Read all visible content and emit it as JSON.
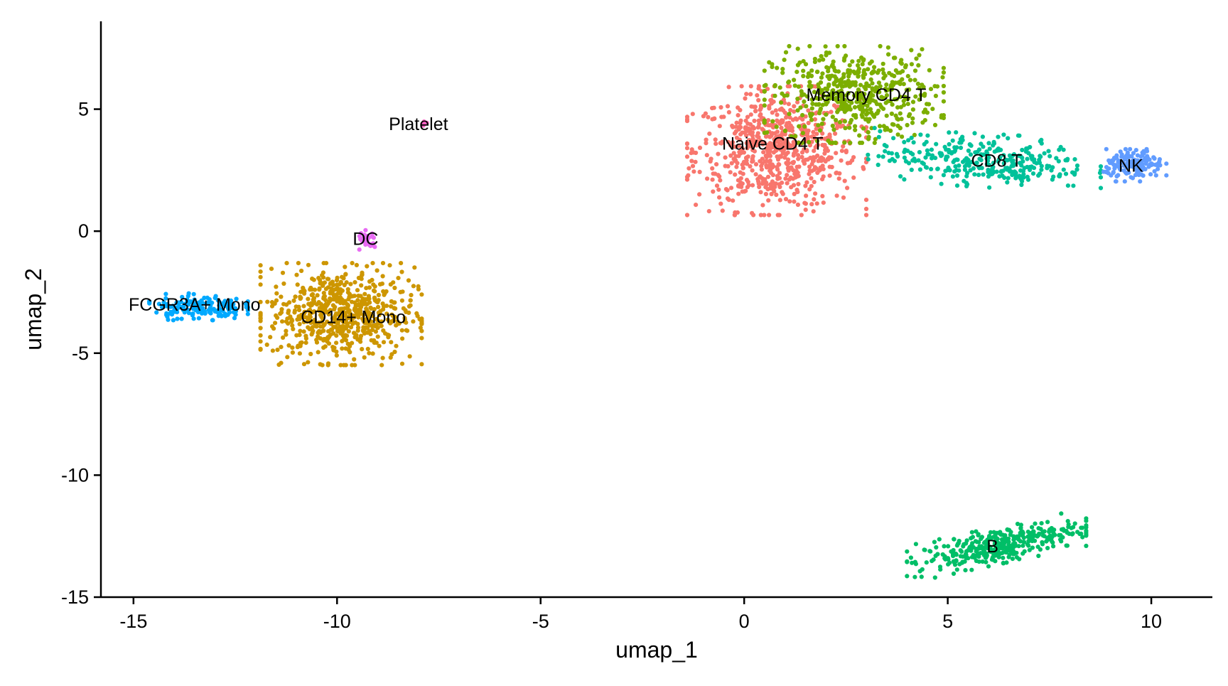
{
  "chart_data": {
    "type": "scatter",
    "xlabel": "umap_1",
    "ylabel": "umap_2",
    "xlim": [
      -15.8,
      11.5
    ],
    "ylim": [
      -15,
      8.6
    ],
    "xticks": [
      -15,
      -10,
      -5,
      0,
      5,
      10
    ],
    "yticks": [
      -15,
      -10,
      -5,
      0,
      5
    ],
    "xtick_labels": [
      "-15",
      "-10",
      "-5",
      "0",
      "5",
      "10"
    ],
    "ytick_labels": [
      "-15",
      "-10",
      "-5",
      "0",
      "5"
    ],
    "grid": false,
    "legend": "none",
    "series": [
      {
        "name": "Naive CD4 T",
        "color": "#F8766D",
        "center": [
          0.8,
          3.3
        ],
        "spread": [
          1.0,
          1.2
        ],
        "count": 700,
        "label_at": [
          0.7,
          3.6
        ]
      },
      {
        "name": "Memory CD4 T",
        "color": "#7CAE00",
        "center": [
          2.7,
          5.6
        ],
        "spread": [
          1.0,
          0.9
        ],
        "count": 500,
        "label_at": [
          3.0,
          5.6
        ]
      },
      {
        "name": "CD14+ Mono",
        "color": "#CD9600",
        "center": [
          -9.9,
          -3.4
        ],
        "spread": [
          0.9,
          0.95
        ],
        "count": 650,
        "label_at": [
          -9.6,
          -3.5
        ]
      },
      {
        "name": "B",
        "color": "#00BE67",
        "center": [
          6.2,
          -12.9
        ],
        "spread": [
          1.0,
          0.35
        ],
        "count": 360,
        "label_at": [
          6.1,
          -12.9
        ]
      },
      {
        "name": "CD8 T",
        "color": "#00C19A",
        "center": [
          5.9,
          2.9
        ],
        "spread": [
          1.3,
          0.5
        ],
        "count": 320,
        "label_at": [
          6.2,
          2.9
        ]
      },
      {
        "name": "FCGR3A+ Mono",
        "color": "#00A9FF",
        "center": [
          -13.4,
          -3.1
        ],
        "spread": [
          0.55,
          0.25
        ],
        "count": 160,
        "label_at": [
          -13.5,
          -3.0
        ]
      },
      {
        "name": "NK",
        "color": "#619CFF",
        "center": [
          9.6,
          2.7
        ],
        "spread": [
          0.35,
          0.3
        ],
        "count": 150,
        "label_at": [
          9.5,
          2.7
        ]
      },
      {
        "name": "DC",
        "color": "#E58700",
        "center": [
          -9.2,
          -0.35
        ],
        "spread": [
          0.15,
          0.22
        ],
        "count": 0,
        "label_at": [
          -9.3,
          -0.3
        ]
      },
      {
        "name": "DC",
        "color": "#E76BF3",
        "center": [
          -9.25,
          -0.4
        ],
        "spread": [
          0.12,
          0.2
        ],
        "count": 30,
        "label_at": [
          -9.3,
          -0.3
        ]
      },
      {
        "name": "Platelet",
        "color": "#FF61C3",
        "center": [
          -7.85,
          4.4
        ],
        "spread": [
          0.04,
          0.05
        ],
        "count": 6,
        "label_at": [
          -8.0,
          4.4
        ]
      }
    ]
  }
}
